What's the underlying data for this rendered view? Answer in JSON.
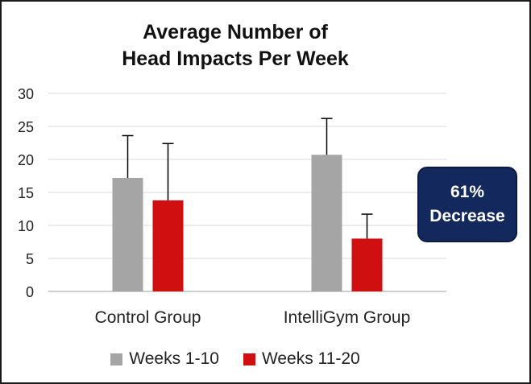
{
  "chart_data": {
    "type": "bar",
    "title_lines": [
      "Average Number of",
      "Head Impacts Per Week"
    ],
    "categories": [
      "Control Group",
      "IntelliGym Group"
    ],
    "series": [
      {
        "name": "Weeks 1-10",
        "color": "#a5a5a5",
        "values": [
          17.2,
          20.7
        ],
        "errors": [
          6.4,
          5.5
        ]
      },
      {
        "name": "Weeks 11-20",
        "color": "#d01010",
        "values": [
          13.8,
          8.0
        ],
        "errors": [
          8.6,
          3.7
        ]
      }
    ],
    "ylim": [
      0,
      30
    ],
    "yticks": [
      0,
      5,
      10,
      15,
      20,
      25,
      30
    ],
    "grid": true,
    "legend_position": "bottom",
    "annotation": {
      "line1": "61%",
      "line2": "Decrease",
      "fill": "#13295e"
    }
  }
}
